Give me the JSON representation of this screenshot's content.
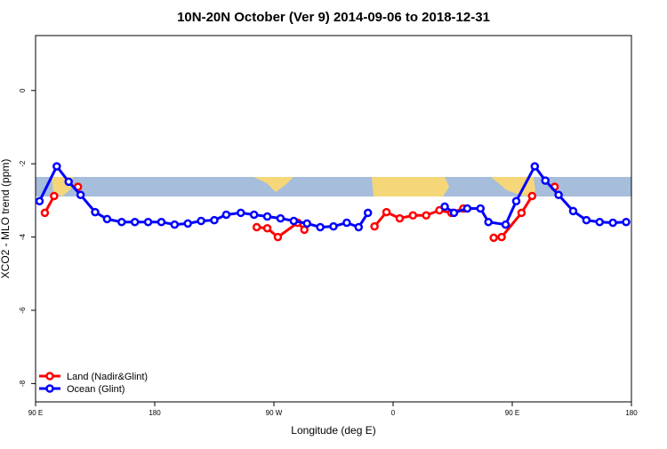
{
  "chart_data": {
    "type": "line",
    "title": "10N-20N October (Ver 9)   2014-09-06 to 2018-12-31",
    "x_label": "Longitude (deg E)",
    "y_label": "XCO2 - MLO trend (ppm)",
    "xlim": [
      90,
      540
    ],
    "ylim": [
      -8.5,
      1.5
    ],
    "xticks": [
      {
        "value": 90,
        "label": "90 E"
      },
      180,
      {
        "value": 270,
        "label": "90 W"
      },
      {
        "value": 360,
        "label": "0"
      },
      {
        "value": 450,
        "label": "90 E"
      },
      {
        "value": 540,
        "label": "180"
      }
    ],
    "yticks": [
      -8,
      -6,
      -4,
      -2,
      0
    ],
    "legend": "bottom-left",
    "series": [
      {
        "name": "Land (Nadir&Glint)",
        "color": "#ff0000",
        "x": [
          97,
          104,
          115,
          122,
          130,
          257,
          265,
          273,
          288,
          293,
          330,
          346,
          355,
          365,
          375,
          385,
          395,
          404,
          413,
          430,
          436,
          442,
          457,
          465,
          470,
          482
        ],
        "values": [
          -3.34,
          -2.88,
          null,
          -2.63,
          null,
          -3.73,
          -3.76,
          -4.0,
          -3.61,
          -3.8,
          null,
          -3.71,
          -3.32,
          -3.49,
          -3.41,
          -3.41,
          -3.27,
          -3.34,
          -3.22,
          null,
          -4.02,
          -4.0,
          -3.34,
          -2.88,
          null,
          -2.63
        ]
      },
      {
        "name": "Ocean (Glint)",
        "color": "#0000ff",
        "x": [
          93,
          106,
          115,
          124,
          135,
          144,
          155,
          165,
          175,
          185,
          195,
          205,
          215,
          225,
          234,
          245,
          255,
          265,
          275,
          285,
          295,
          305,
          315,
          325,
          334,
          341,
          370,
          399,
          406,
          416,
          426,
          432,
          445,
          453,
          467,
          475,
          485,
          496,
          506,
          516,
          526,
          536
        ],
        "values": [
          -3.02,
          -2.07,
          -2.49,
          -2.85,
          -3.32,
          -3.51,
          -3.59,
          -3.59,
          -3.59,
          -3.59,
          -3.66,
          -3.63,
          -3.56,
          -3.54,
          -3.39,
          -3.34,
          -3.39,
          -3.44,
          -3.49,
          -3.56,
          -3.63,
          -3.73,
          -3.71,
          -3.61,
          -3.73,
          -3.34,
          null,
          -3.17,
          -3.34,
          -3.22,
          -3.22,
          -3.59,
          -3.66,
          -3.02,
          -2.07,
          -2.46,
          -2.85,
          -3.29,
          -3.54,
          -3.59,
          -3.61,
          -3.59
        ]
      }
    ]
  }
}
